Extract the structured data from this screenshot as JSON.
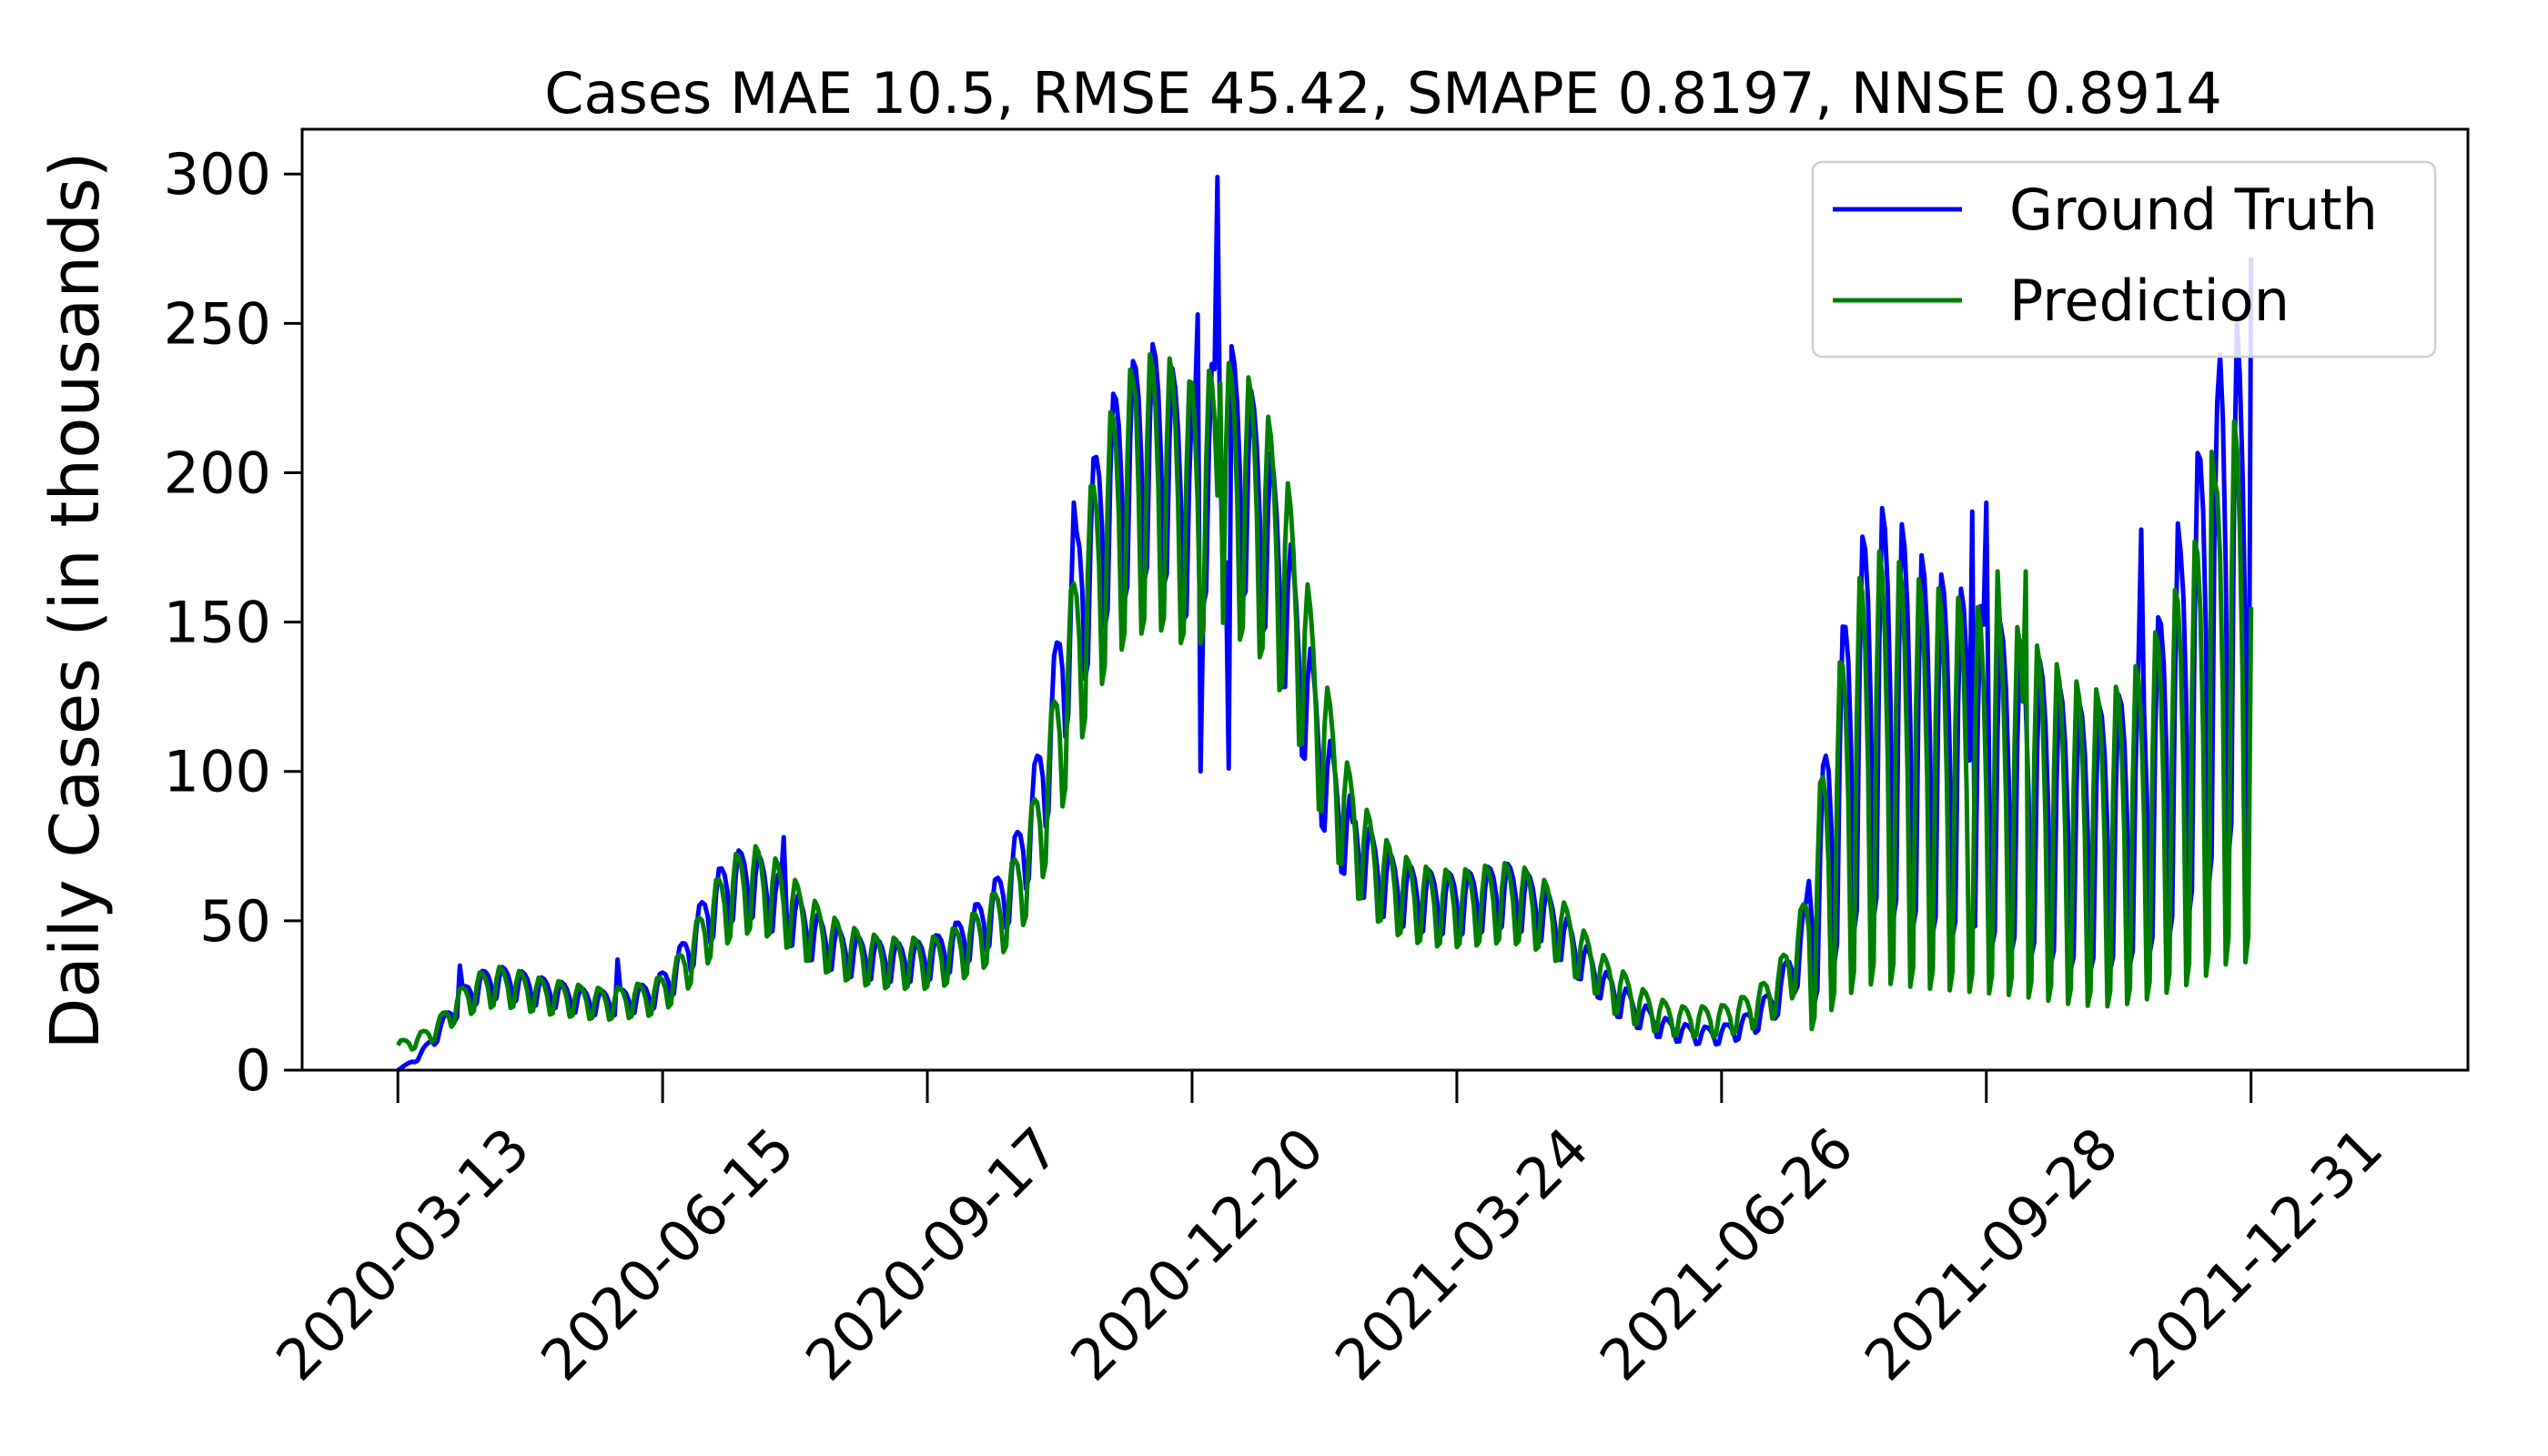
{
  "chart_data": {
    "type": "line",
    "title": "Cases MAE 10.5, RMSE 45.42, SMAPE 0.8197, NNSE 0.8914",
    "xlabel": "",
    "ylabel": "Daily Cases (in thousands)",
    "ylim": [
      0,
      315
    ],
    "yticks": [
      0,
      50,
      100,
      150,
      200,
      250,
      300
    ],
    "ytick_labels": [
      "0",
      "50",
      "100",
      "150",
      "200",
      "250",
      "300"
    ],
    "x_range_days": [
      -34,
      735
    ],
    "xticks_days": [
      0,
      94,
      188,
      282,
      376,
      470,
      564,
      658
    ],
    "xtick_labels": [
      "2020-03-13",
      "2020-06-15",
      "2020-09-17",
      "2020-12-20",
      "2021-03-24",
      "2021-06-26",
      "2021-09-28",
      "2021-12-31"
    ],
    "grid": false,
    "legend_position": "top-right",
    "series": [
      {
        "name": "Ground Truth",
        "color": "#0000ff",
        "keypoints": [
          [
            0,
            0
          ],
          [
            7,
            4
          ],
          [
            14,
            12
          ],
          [
            21,
            22
          ],
          [
            28,
            28
          ],
          [
            35,
            30
          ],
          [
            42,
            29
          ],
          [
            49,
            27
          ],
          [
            56,
            26
          ],
          [
            63,
            24
          ],
          [
            70,
            23
          ],
          [
            77,
            23
          ],
          [
            84,
            24
          ],
          [
            91,
            26
          ],
          [
            98,
            32
          ],
          [
            105,
            44
          ],
          [
            112,
            56
          ],
          [
            119,
            63
          ],
          [
            126,
            64
          ],
          [
            133,
            58
          ],
          [
            140,
            52
          ],
          [
            147,
            46
          ],
          [
            154,
            42
          ],
          [
            161,
            39
          ],
          [
            168,
            38
          ],
          [
            175,
            37
          ],
          [
            182,
            37
          ],
          [
            189,
            38
          ],
          [
            196,
            41
          ],
          [
            203,
            46
          ],
          [
            210,
            52
          ],
          [
            217,
            62
          ],
          [
            224,
            80
          ],
          [
            231,
            108
          ],
          [
            238,
            148
          ],
          [
            245,
            170
          ],
          [
            252,
            192
          ],
          [
            259,
            202
          ],
          [
            266,
            210
          ],
          [
            273,
            207
          ],
          [
            280,
            190
          ],
          [
            287,
            200
          ],
          [
            294,
            212
          ],
          [
            301,
            200
          ],
          [
            308,
            185
          ],
          [
            315,
            160
          ],
          [
            322,
            130
          ],
          [
            329,
            100
          ],
          [
            336,
            82
          ],
          [
            343,
            72
          ],
          [
            350,
            64
          ],
          [
            357,
            60
          ],
          [
            364,
            58
          ],
          [
            371,
            57
          ],
          [
            378,
            57
          ],
          [
            385,
            58
          ],
          [
            392,
            60
          ],
          [
            399,
            58
          ],
          [
            406,
            54
          ],
          [
            413,
            46
          ],
          [
            420,
            38
          ],
          [
            427,
            30
          ],
          [
            434,
            24
          ],
          [
            441,
            19
          ],
          [
            448,
            15
          ],
          [
            455,
            13
          ],
          [
            462,
            12
          ],
          [
            469,
            12
          ],
          [
            476,
            14
          ],
          [
            483,
            18
          ],
          [
            490,
            25
          ],
          [
            497,
            38
          ],
          [
            504,
            60
          ],
          [
            511,
            95
          ],
          [
            518,
            120
          ],
          [
            525,
            130
          ],
          [
            532,
            128
          ],
          [
            539,
            120
          ],
          [
            546,
            115
          ],
          [
            553,
            112
          ],
          [
            560,
            108
          ],
          [
            567,
            104
          ],
          [
            574,
            100
          ],
          [
            581,
            96
          ],
          [
            588,
            90
          ],
          [
            595,
            85
          ],
          [
            602,
            84
          ],
          [
            609,
            85
          ],
          [
            616,
            90
          ],
          [
            623,
            100
          ],
          [
            630,
            115
          ],
          [
            637,
            135
          ],
          [
            644,
            160
          ],
          [
            651,
            185
          ],
          [
            658,
            140
          ]
        ],
        "weekly_amplitude": 0.18,
        "notable_peaks": [
          [
            291,
            299
          ],
          [
            284,
            253
          ],
          [
            658,
            272
          ],
          [
            646,
            224
          ],
          [
            564,
            190
          ],
          [
            559,
            187
          ],
          [
            619,
            181
          ],
          [
            632,
            183
          ],
          [
            262,
            235
          ],
          [
            240,
            190
          ],
          [
            339,
            83
          ],
          [
            78,
            37
          ],
          [
            22,
            35
          ],
          [
            137,
            78
          ]
        ],
        "notable_dips": [
          [
            295,
            101
          ],
          [
            285,
            100
          ]
        ]
      },
      {
        "name": "Prediction",
        "color": "#008000",
        "keypoints": [
          [
            0,
            8
          ],
          [
            7,
            10
          ],
          [
            14,
            14
          ],
          [
            21,
            22
          ],
          [
            28,
            27
          ],
          [
            35,
            29
          ],
          [
            42,
            28
          ],
          [
            49,
            26
          ],
          [
            56,
            25
          ],
          [
            63,
            24
          ],
          [
            70,
            23
          ],
          [
            77,
            23
          ],
          [
            84,
            24
          ],
          [
            91,
            25
          ],
          [
            98,
            30
          ],
          [
            105,
            40
          ],
          [
            112,
            52
          ],
          [
            119,
            60
          ],
          [
            126,
            63
          ],
          [
            133,
            60
          ],
          [
            140,
            54
          ],
          [
            147,
            48
          ],
          [
            154,
            43
          ],
          [
            161,
            40
          ],
          [
            168,
            38
          ],
          [
            175,
            37
          ],
          [
            182,
            37
          ],
          [
            189,
            37
          ],
          [
            196,
            39
          ],
          [
            203,
            43
          ],
          [
            210,
            48
          ],
          [
            217,
            56
          ],
          [
            224,
            70
          ],
          [
            231,
            95
          ],
          [
            238,
            130
          ],
          [
            245,
            160
          ],
          [
            252,
            182
          ],
          [
            259,
            195
          ],
          [
            266,
            200
          ],
          [
            273,
            200
          ],
          [
            280,
            192
          ],
          [
            287,
            195
          ],
          [
            294,
            198
          ],
          [
            301,
            195
          ],
          [
            308,
            185
          ],
          [
            315,
            168
          ],
          [
            322,
            140
          ],
          [
            329,
            110
          ],
          [
            336,
            88
          ],
          [
            343,
            74
          ],
          [
            350,
            65
          ],
          [
            357,
            60
          ],
          [
            364,
            57
          ],
          [
            371,
            56
          ],
          [
            378,
            56
          ],
          [
            385,
            57
          ],
          [
            392,
            58
          ],
          [
            399,
            57
          ],
          [
            406,
            54
          ],
          [
            413,
            48
          ],
          [
            420,
            40
          ],
          [
            427,
            33
          ],
          [
            434,
            27
          ],
          [
            441,
            22
          ],
          [
            448,
            19
          ],
          [
            455,
            17
          ],
          [
            462,
            17
          ],
          [
            469,
            17
          ],
          [
            476,
            19
          ],
          [
            483,
            22
          ],
          [
            490,
            28
          ],
          [
            497,
            40
          ],
          [
            504,
            58
          ],
          [
            511,
            85
          ],
          [
            518,
            105
          ],
          [
            525,
            112
          ],
          [
            532,
            110
          ],
          [
            539,
            106
          ],
          [
            546,
            104
          ],
          [
            553,
            102
          ],
          [
            560,
            100
          ],
          [
            567,
            98
          ],
          [
            574,
            96
          ],
          [
            581,
            92
          ],
          [
            588,
            88
          ],
          [
            595,
            84
          ],
          [
            602,
            82
          ],
          [
            609,
            82
          ],
          [
            616,
            86
          ],
          [
            623,
            93
          ],
          [
            630,
            102
          ],
          [
            637,
            112
          ],
          [
            644,
            125
          ],
          [
            651,
            140
          ],
          [
            658,
            138
          ]
        ],
        "weekly_amplitude": 0.22,
        "notable_peaks": [
          [
            282,
            230
          ],
          [
            292,
            230
          ],
          [
            262,
            225
          ],
          [
            644,
            207
          ],
          [
            568,
            167
          ],
          [
            578,
            167
          ]
        ]
      }
    ]
  }
}
